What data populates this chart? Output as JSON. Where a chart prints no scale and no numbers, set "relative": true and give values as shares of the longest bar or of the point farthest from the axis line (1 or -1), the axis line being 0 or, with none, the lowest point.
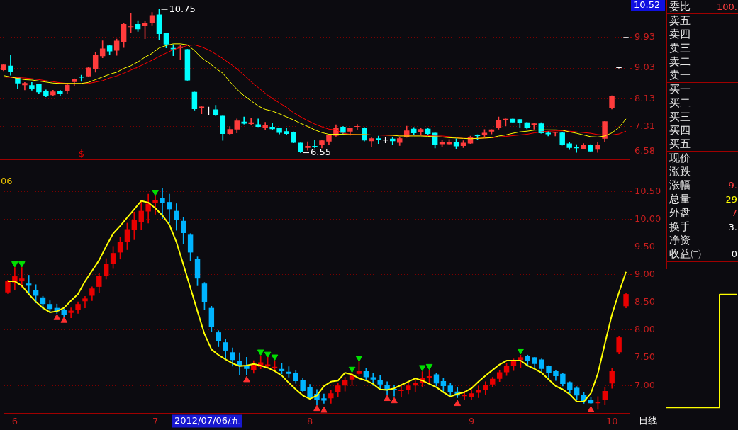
{
  "chart_data": [
    {
      "type": "candlestick",
      "tick_labels": "y",
      "grid": "y",
      "ylim": [
        6.35,
        10.8
      ],
      "yticks": [
        6.58,
        7.31,
        8.13,
        9.03,
        9.93
      ],
      "categories": [
        null,
        null,
        null,
        null,
        null,
        null,
        null,
        null,
        null,
        null,
        null,
        null,
        null,
        null,
        null,
        null,
        null,
        null,
        null,
        null,
        null,
        null,
        null,
        null,
        null,
        null,
        null,
        null,
        null,
        null,
        null,
        null,
        null,
        null,
        null,
        null,
        null,
        null,
        null,
        null,
        null,
        null,
        null,
        null,
        null,
        null,
        null,
        null,
        null,
        null,
        null,
        null,
        null,
        null,
        null,
        null,
        null,
        null,
        null,
        null,
        null,
        null,
        null,
        null,
        null,
        null,
        null,
        null,
        null,
        null,
        null,
        null,
        null,
        null,
        null,
        null,
        null,
        null,
        null,
        null,
        null,
        null,
        null,
        null,
        null,
        null,
        null,
        null,
        null
      ],
      "ohlc": [
        [
          8.97,
          9.15,
          8.95,
          9.13
        ],
        [
          9.1,
          9.4,
          8.82,
          8.91
        ],
        [
          8.77,
          8.77,
          8.43,
          8.58
        ],
        [
          8.53,
          8.61,
          8.39,
          8.59
        ],
        [
          8.53,
          8.61,
          8.38,
          8.43
        ],
        [
          8.56,
          8.56,
          8.28,
          8.32
        ],
        [
          8.35,
          8.39,
          8.19,
          8.21
        ],
        [
          8.24,
          8.38,
          8.22,
          8.34
        ],
        [
          8.35,
          8.38,
          8.22,
          8.27
        ],
        [
          8.36,
          8.58,
          8.27,
          8.54
        ],
        [
          8.62,
          8.72,
          8.51,
          8.71
        ],
        [
          8.77,
          8.82,
          8.64,
          8.75
        ],
        [
          8.79,
          9.06,
          8.77,
          9.04
        ],
        [
          9.0,
          9.49,
          8.91,
          9.41
        ],
        [
          9.38,
          9.83,
          9.33,
          9.6
        ],
        [
          9.69,
          9.69,
          9.42,
          9.52
        ],
        [
          9.54,
          9.88,
          9.4,
          9.83
        ],
        [
          9.8,
          10.35,
          9.63,
          10.32
        ],
        [
          10.23,
          10.63,
          10.07,
          10.25
        ],
        [
          10.32,
          10.42,
          10.1,
          10.17
        ],
        [
          10.27,
          10.41,
          9.89,
          10.35
        ],
        [
          10.35,
          10.66,
          10.29,
          10.58
        ],
        [
          10.6,
          10.75,
          9.86,
          10.03
        ],
        [
          10.06,
          10.06,
          9.62,
          9.72
        ],
        [
          9.62,
          9.72,
          9.39,
          9.58
        ],
        [
          9.62,
          9.69,
          9.29,
          9.66
        ],
        [
          9.58,
          9.58,
          8.67,
          8.67
        ],
        [
          8.33,
          8.33,
          7.8,
          7.83
        ],
        [
          7.87,
          7.9,
          7.69,
          7.9
        ],
        [
          7.85,
          7.89,
          7.67,
          7.85
        ],
        [
          7.82,
          7.94,
          7.63,
          7.64
        ],
        [
          7.63,
          7.63,
          6.91,
          7.1
        ],
        [
          7.1,
          7.32,
          7.08,
          7.24
        ],
        [
          7.23,
          7.54,
          7.13,
          7.49
        ],
        [
          7.46,
          7.6,
          7.39,
          7.4
        ],
        [
          7.39,
          7.57,
          7.36,
          7.44
        ],
        [
          7.38,
          7.54,
          7.31,
          7.31
        ],
        [
          7.29,
          7.44,
          7.21,
          7.35
        ],
        [
          7.31,
          7.41,
          7.22,
          7.24
        ],
        [
          7.27,
          7.27,
          7.1,
          7.13
        ],
        [
          7.18,
          7.27,
          7.08,
          7.1
        ],
        [
          7.16,
          7.16,
          6.84,
          6.84
        ],
        [
          6.84,
          6.84,
          6.55,
          6.57
        ],
        [
          6.69,
          6.87,
          6.62,
          6.75
        ],
        [
          6.75,
          6.91,
          6.69,
          6.71
        ],
        [
          6.79,
          6.91,
          6.69,
          6.91
        ],
        [
          6.88,
          7.08,
          6.79,
          7.08
        ],
        [
          7.05,
          7.37,
          7.03,
          7.29
        ],
        [
          7.31,
          7.32,
          7.1,
          7.13
        ],
        [
          7.17,
          7.27,
          7.06,
          7.27
        ],
        [
          7.31,
          7.38,
          7.22,
          7.32
        ],
        [
          7.29,
          7.29,
          6.89,
          6.91
        ],
        [
          6.89,
          7.0,
          6.72,
          6.97
        ],
        [
          6.97,
          7.04,
          6.82,
          6.92
        ],
        [
          6.91,
          7.0,
          6.84,
          6.91
        ],
        [
          6.96,
          7.0,
          6.79,
          6.89
        ],
        [
          6.84,
          7.0,
          6.76,
          6.97
        ],
        [
          7.0,
          7.33,
          7.0,
          7.2
        ],
        [
          7.25,
          7.29,
          7.08,
          7.12
        ],
        [
          7.16,
          7.27,
          7.08,
          7.24
        ],
        [
          7.25,
          7.27,
          7.08,
          7.1
        ],
        [
          7.13,
          7.13,
          6.69,
          6.77
        ],
        [
          6.8,
          6.93,
          6.73,
          6.85
        ],
        [
          6.8,
          6.94,
          6.79,
          6.85
        ],
        [
          6.87,
          6.96,
          6.66,
          6.74
        ],
        [
          6.75,
          6.9,
          6.7,
          6.84
        ],
        [
          6.82,
          7.04,
          6.82,
          7.0
        ],
        [
          7.08,
          7.08,
          6.94,
          7.04
        ],
        [
          7.08,
          7.23,
          7.01,
          7.13
        ],
        [
          7.17,
          7.23,
          7.1,
          7.23
        ],
        [
          7.27,
          7.6,
          7.24,
          7.5
        ],
        [
          7.5,
          7.54,
          7.33,
          7.54
        ],
        [
          7.54,
          7.54,
          7.43,
          7.44
        ],
        [
          7.53,
          7.53,
          7.29,
          7.43
        ],
        [
          7.44,
          7.44,
          7.25,
          7.27
        ],
        [
          7.37,
          7.41,
          7.24,
          7.41
        ],
        [
          7.41,
          7.43,
          7.12,
          7.12
        ],
        [
          7.13,
          7.18,
          7.04,
          7.09
        ],
        [
          7.13,
          7.15,
          7.04,
          7.14
        ],
        [
          7.14,
          7.14,
          6.77,
          6.77
        ],
        [
          6.82,
          6.85,
          6.64,
          6.69
        ],
        [
          6.71,
          6.79,
          6.56,
          6.68
        ],
        [
          6.66,
          6.82,
          6.66,
          6.77
        ],
        [
          6.79,
          6.79,
          6.59,
          6.59
        ],
        [
          6.64,
          6.85,
          6.56,
          6.79
        ],
        [
          6.96,
          7.47,
          6.87,
          7.47
        ],
        [
          7.85,
          8.22,
          7.83,
          8.22
        ],
        [
          9.03,
          9.03,
          9.03,
          9.03
        ],
        [
          9.92,
          9.92,
          9.92,
          9.92
        ]
      ],
      "colors": [
        "#ff3c3c",
        "#00ffff",
        "#00ffff",
        "#ff3c3c",
        "#00ffff",
        "#00ffff",
        "#00ffff",
        "#ff3c3c",
        "#00ffff",
        "#ff3c3c",
        "#ff3c3c",
        "#00ffff",
        "#ff3c3c",
        "#ff3c3c",
        "#ff3c3c",
        "#00ffff",
        "#ff3c3c",
        "#ff3c3c",
        "#ff3c3c",
        "#00ffff",
        "#ff3c3c",
        "#ff3c3c",
        "#00ffff",
        "#00ffff",
        "#00ffff",
        "#ff3c3c",
        "#00ffff",
        "#00ffff",
        "#ff3c3c",
        "#ffffff",
        "#00ffff",
        "#00ffff",
        "#ff3c3c",
        "#ff3c3c",
        "#00ffff",
        "#ff3c3c",
        "#00ffff",
        "#ff3c3c",
        "#00ffff",
        "#00ffff",
        "#00ffff",
        "#00ffff",
        "#00ffff",
        "#ff3c3c",
        "#00ffff",
        "#ff3c3c",
        "#ff3c3c",
        "#ff3c3c",
        "#00ffff",
        "#ff3c3c",
        "#ff3c3c",
        "#00ffff",
        "#ff3c3c",
        "#00ffff",
        "#ffffff",
        "#00ffff",
        "#ff3c3c",
        "#ff3c3c",
        "#00ffff",
        "#ff3c3c",
        "#00ffff",
        "#00ffff",
        "#ff3c3c",
        "#ff3c3c",
        "#00ffff",
        "#ff3c3c",
        "#ff3c3c",
        "#00ffff",
        "#ff3c3c",
        "#ff3c3c",
        "#ff3c3c",
        "#ff3c3c",
        "#00ffff",
        "#00ffff",
        "#00ffff",
        "#ff3c3c",
        "#00ffff",
        "#00ffff",
        "#ff3c3c",
        "#00ffff",
        "#00ffff",
        "#00ffff",
        "#ff3c3c",
        "#00ffff",
        "#ff3c3c",
        "#ff3c3c",
        "#ff3c3c",
        "#ffffff",
        "#ffffff"
      ],
      "series": [
        {
          "type": "line",
          "color": "#ffff00",
          "values": [
            8.81,
            8.77,
            8.73,
            8.69,
            8.68,
            8.65,
            8.62,
            8.59,
            8.58,
            8.58,
            8.58,
            8.58,
            8.61,
            8.69,
            8.77,
            8.85,
            8.91,
            9.02,
            9.1,
            9.21,
            9.35,
            9.46,
            9.62,
            9.69,
            9.74,
            9.74,
            9.71,
            9.54,
            9.33,
            9.19,
            9.02,
            8.88,
            8.63,
            8.41,
            8.22,
            8.07,
            7.92,
            7.82,
            7.77,
            7.69,
            7.6,
            7.51,
            7.41,
            7.32,
            7.22,
            7.14,
            7.09,
            7.09,
            7.09,
            7.08,
            7.08,
            7.08,
            7.07,
            7.07,
            7.07,
            7.06,
            7.04,
            7.04,
            7.04,
            7.04,
            7.03,
            7.02,
            7.01,
            6.99,
            6.98,
            6.97,
            6.96,
            6.97,
            6.98,
            6.99,
            7.04,
            7.07,
            7.12,
            7.16,
            7.18,
            7.21,
            7.22,
            7.22,
            7.22,
            7.21,
            7.16,
            7.12,
            7.07,
            7.02,
            7.01,
            7.04,
            7.13,
            7.29,
            7.54
          ]
        },
        {
          "type": "line",
          "color": "#ff0000",
          "values": [
            8.77,
            8.76,
            8.75,
            8.74,
            8.72,
            8.69,
            8.66,
            8.63,
            8.6,
            8.58,
            8.57,
            8.57,
            8.58,
            8.62,
            8.66,
            8.74,
            8.8,
            8.88,
            8.97,
            9.06,
            9.16,
            9.26,
            9.37,
            9.47,
            9.57,
            9.63,
            9.69,
            9.71,
            9.65,
            9.56,
            9.44,
            9.31,
            9.16,
            9.01,
            8.82,
            8.63,
            8.46,
            8.29,
            8.14,
            8.01,
            7.88,
            7.72,
            7.6,
            7.49,
            7.39,
            7.31,
            7.24,
            7.22,
            7.12,
            7.09,
            7.08,
            7.08,
            7.07,
            7.07,
            7.06,
            7.06,
            7.06,
            7.06,
            7.06,
            7.06,
            7.05,
            7.04,
            7.04,
            7.02,
            6.99,
            6.97,
            6.97,
            6.97,
            6.98,
            6.99,
            7.01,
            7.03,
            7.05,
            7.07,
            7.09,
            7.13,
            7.16,
            7.18,
            7.19,
            7.19,
            7.18,
            7.16,
            7.14,
            7.12,
            7.08,
            7.07,
            7.07,
            7.1,
            7.18
          ]
        }
      ],
      "annotations": [
        "10.75",
        "6.55",
        "10.52",
        "$"
      ]
    },
    {
      "type": "candlestick",
      "grid": "y",
      "ylim": [
        6.5,
        10.8
      ],
      "yticks": [
        {
          "value": 7,
          "label": "7.00"
        },
        {
          "value": 7.5,
          "label": "7.50"
        },
        {
          "value": 8,
          "label": "8.00"
        },
        {
          "value": 8.5,
          "label": "8.50"
        },
        {
          "value": 9,
          "label": "9.00"
        },
        {
          "value": 9.5,
          "label": "9.50"
        },
        {
          "value": 10,
          "label": "10.00"
        },
        {
          "value": 10.5,
          "label": "10.50"
        }
      ],
      "categories": [
        null,
        "6",
        null,
        null,
        null,
        null,
        null,
        null,
        null,
        null,
        null,
        null,
        null,
        null,
        null,
        null,
        null,
        null,
        null,
        null,
        null,
        "7",
        null,
        null,
        null,
        null,
        null,
        null,
        null,
        null,
        null,
        null,
        null,
        null,
        null,
        null,
        null,
        null,
        null,
        null,
        null,
        null,
        null,
        "8",
        null,
        null,
        null,
        null,
        null,
        null,
        null,
        null,
        null,
        null,
        null,
        null,
        null,
        null,
        null,
        null,
        null,
        null,
        null,
        null,
        null,
        null,
        "9",
        null,
        null,
        null,
        null,
        null,
        null,
        null,
        null,
        null,
        null,
        null,
        null,
        null,
        null,
        null,
        null,
        null,
        null,
        null,
        "10",
        null,
        null
      ],
      "ohlc": [
        [
          8.68,
          8.9,
          8.66,
          8.88
        ],
        [
          8.86,
          9.13,
          8.72,
          8.97
        ],
        [
          8.88,
          9.13,
          8.76,
          8.93
        ],
        [
          8.84,
          8.99,
          8.63,
          8.8
        ],
        [
          8.72,
          8.82,
          8.49,
          8.62
        ],
        [
          8.59,
          8.61,
          8.38,
          8.47
        ],
        [
          8.47,
          8.53,
          8.32,
          8.38
        ],
        [
          8.4,
          8.47,
          8.3,
          8.34
        ],
        [
          8.36,
          8.38,
          8.24,
          8.28
        ],
        [
          8.31,
          8.4,
          8.22,
          8.35
        ],
        [
          8.37,
          8.51,
          8.3,
          8.47
        ],
        [
          8.52,
          8.61,
          8.4,
          8.57
        ],
        [
          8.62,
          8.78,
          8.53,
          8.75
        ],
        [
          8.78,
          9.02,
          8.68,
          8.98
        ],
        [
          8.97,
          9.29,
          8.92,
          9.2
        ],
        [
          9.2,
          9.51,
          9.11,
          9.39
        ],
        [
          9.4,
          9.68,
          9.28,
          9.59
        ],
        [
          9.59,
          9.93,
          9.45,
          9.82
        ],
        [
          9.81,
          10.13,
          9.63,
          9.98
        ],
        [
          9.95,
          10.34,
          9.81,
          10.15
        ],
        [
          10.14,
          10.45,
          9.93,
          10.28
        ],
        [
          10.29,
          10.43,
          10.09,
          10.35
        ],
        [
          10.38,
          10.56,
          10.01,
          10.29
        ],
        [
          10.31,
          10.45,
          9.93,
          10.18
        ],
        [
          10.15,
          10.28,
          9.8,
          9.98
        ],
        [
          9.97,
          10.03,
          9.55,
          9.75
        ],
        [
          9.72,
          9.74,
          9.25,
          9.4
        ],
        [
          9.29,
          9.32,
          8.8,
          8.93
        ],
        [
          8.84,
          8.86,
          8.37,
          8.51
        ],
        [
          8.4,
          8.43,
          7.97,
          8.06
        ],
        [
          7.96,
          7.99,
          7.7,
          7.8
        ],
        [
          7.78,
          7.83,
          7.47,
          7.63
        ],
        [
          7.6,
          7.68,
          7.35,
          7.46
        ],
        [
          7.44,
          7.59,
          7.2,
          7.35
        ],
        [
          7.35,
          7.51,
          7.2,
          7.3
        ],
        [
          7.28,
          7.45,
          7.22,
          7.38
        ],
        [
          7.34,
          7.53,
          7.3,
          7.42
        ],
        [
          7.35,
          7.51,
          7.32,
          7.38
        ],
        [
          7.31,
          7.45,
          7.26,
          7.34
        ],
        [
          7.3,
          7.4,
          7.21,
          7.26
        ],
        [
          7.25,
          7.34,
          7.15,
          7.21
        ],
        [
          7.23,
          7.27,
          7.04,
          7.08
        ],
        [
          7.1,
          7.13,
          6.89,
          6.9
        ],
        [
          6.97,
          7.02,
          6.76,
          6.78
        ],
        [
          6.85,
          6.93,
          6.65,
          6.74
        ],
        [
          6.77,
          6.85,
          6.68,
          6.73
        ],
        [
          6.77,
          6.92,
          6.68,
          6.86
        ],
        [
          6.88,
          7.05,
          6.79,
          7.0
        ],
        [
          7.0,
          7.15,
          6.9,
          7.1
        ],
        [
          7.11,
          7.22,
          7.0,
          7.18
        ],
        [
          7.21,
          7.43,
          7.18,
          7.26
        ],
        [
          7.26,
          7.31,
          7.09,
          7.15
        ],
        [
          7.15,
          7.22,
          7.0,
          7.11
        ],
        [
          7.1,
          7.18,
          6.93,
          7.02
        ],
        [
          7.01,
          7.07,
          6.84,
          6.92
        ],
        [
          6.94,
          7.01,
          6.81,
          6.92
        ],
        [
          6.9,
          6.99,
          6.8,
          6.92
        ],
        [
          6.92,
          7.06,
          6.85,
          7.0
        ],
        [
          7.0,
          7.11,
          6.89,
          7.05
        ],
        [
          7.05,
          7.25,
          6.97,
          7.13
        ],
        [
          7.14,
          7.27,
          7.05,
          7.17
        ],
        [
          7.2,
          7.22,
          6.99,
          7.04
        ],
        [
          7.08,
          7.13,
          6.89,
          6.99
        ],
        [
          7.0,
          7.04,
          6.81,
          6.88
        ],
        [
          6.89,
          6.97,
          6.78,
          6.82
        ],
        [
          6.81,
          6.9,
          6.74,
          6.83
        ],
        [
          6.8,
          6.93,
          6.74,
          6.86
        ],
        [
          6.87,
          6.99,
          6.78,
          6.92
        ],
        [
          6.92,
          7.07,
          6.84,
          7.01
        ],
        [
          7.02,
          7.15,
          6.97,
          7.12
        ],
        [
          7.12,
          7.27,
          7.07,
          7.24
        ],
        [
          7.24,
          7.4,
          7.18,
          7.36
        ],
        [
          7.36,
          7.48,
          7.27,
          7.45
        ],
        [
          7.46,
          7.55,
          7.32,
          7.51
        ],
        [
          7.53,
          7.55,
          7.35,
          7.45
        ],
        [
          7.51,
          7.51,
          7.3,
          7.39
        ],
        [
          7.47,
          7.48,
          7.24,
          7.3
        ],
        [
          7.35,
          7.36,
          7.15,
          7.23
        ],
        [
          7.26,
          7.28,
          7.09,
          7.17
        ],
        [
          7.21,
          7.23,
          6.99,
          7.03
        ],
        [
          7.06,
          7.07,
          6.86,
          6.92
        ],
        [
          6.96,
          6.98,
          6.74,
          6.82
        ],
        [
          6.83,
          6.88,
          6.68,
          6.72
        ],
        [
          6.74,
          6.79,
          6.67,
          6.68
        ],
        [
          6.68,
          6.8,
          6.57,
          6.7
        ],
        [
          6.74,
          6.97,
          6.65,
          6.9
        ],
        [
          7.04,
          7.32,
          6.95,
          7.26
        ],
        [
          7.6,
          7.88,
          7.57,
          7.87
        ],
        [
          8.43,
          8.67,
          8.4,
          8.65
        ]
      ],
      "colors": [
        "#e80000",
        "#e80000",
        "#e80000",
        "#00b4ff",
        "#00b4ff",
        "#00b4ff",
        "#00b4ff",
        "#00b4ff",
        "#00b4ff",
        "#e80000",
        "#e80000",
        "#e80000",
        "#e80000",
        "#e80000",
        "#e80000",
        "#e80000",
        "#e80000",
        "#e80000",
        "#e80000",
        "#e80000",
        "#e80000",
        "#e80000",
        "#00b4ff",
        "#00b4ff",
        "#00b4ff",
        "#00b4ff",
        "#00b4ff",
        "#00b4ff",
        "#00b4ff",
        "#00b4ff",
        "#00b4ff",
        "#00b4ff",
        "#00b4ff",
        "#00b4ff",
        "#00b4ff",
        "#e80000",
        "#e80000",
        "#e80000",
        "#e80000",
        "#00b4ff",
        "#00b4ff",
        "#00b4ff",
        "#00b4ff",
        "#00b4ff",
        "#00b4ff",
        "#00b4ff",
        "#e80000",
        "#e80000",
        "#e80000",
        "#e80000",
        "#e80000",
        "#00b4ff",
        "#00b4ff",
        "#00b4ff",
        "#00b4ff",
        "#00b4ff",
        "#e80000",
        "#e80000",
        "#e80000",
        "#e80000",
        "#e80000",
        "#00b4ff",
        "#00b4ff",
        "#00b4ff",
        "#00b4ff",
        "#e80000",
        "#e80000",
        "#e80000",
        "#e80000",
        "#e80000",
        "#e80000",
        "#e80000",
        "#e80000",
        "#e80000",
        "#00b4ff",
        "#00b4ff",
        "#00b4ff",
        "#00b4ff",
        "#00b4ff",
        "#00b4ff",
        "#00b4ff",
        "#00b4ff",
        "#00b4ff",
        "#00b4ff",
        "#e80000",
        "#e80000",
        "#e80000",
        "#e80000",
        "#e80000"
      ],
      "series": [
        {
          "type": "line",
          "color": "#ffff00",
          "values": [
            8.88,
            8.88,
            8.8,
            8.65,
            8.51,
            8.4,
            8.32,
            8.34,
            8.4,
            8.53,
            8.65,
            8.88,
            9.07,
            9.26,
            9.51,
            9.74,
            9.88,
            10.03,
            10.18,
            10.33,
            10.3,
            10.2,
            10.07,
            9.9,
            9.59,
            9.18,
            8.76,
            8.34,
            7.93,
            7.65,
            7.55,
            7.47,
            7.4,
            7.35,
            7.36,
            7.39,
            7.36,
            7.32,
            7.26,
            7.18,
            7.05,
            6.93,
            6.82,
            6.76,
            6.82,
            6.99,
            7.07,
            7.09,
            7.23,
            7.2,
            7.13,
            7.09,
            7.03,
            6.93,
            6.92,
            6.95,
            7.01,
            7.07,
            7.13,
            7.09,
            7.03,
            6.97,
            6.88,
            6.8,
            6.85,
            6.88,
            6.95,
            7.07,
            7.18,
            7.28,
            7.38,
            7.45,
            7.45,
            7.45,
            7.36,
            7.3,
            7.23,
            7.11,
            6.99,
            6.93,
            6.84,
            6.71,
            6.71,
            6.86,
            7.22,
            7.76,
            8.28,
            8.68,
            9.05
          ]
        },
        {
          "type": "scatter",
          "color": "#00e000",
          "marker": "triangle",
          "values": [
            null,
            9.2,
            9.2,
            null,
            null,
            null,
            null,
            null,
            null,
            null,
            null,
            null,
            null,
            null,
            null,
            null,
            null,
            null,
            null,
            null,
            null,
            10.49,
            null,
            null,
            null,
            null,
            null,
            null,
            null,
            null,
            null,
            null,
            null,
            null,
            null,
            null,
            7.61,
            7.57,
            7.52,
            null,
            null,
            null,
            null,
            null,
            null,
            null,
            null,
            null,
            null,
            7.3,
            7.5,
            null,
            null,
            null,
            null,
            null,
            null,
            null,
            null,
            7.33,
            7.35,
            null,
            null,
            null,
            null,
            null,
            null,
            null,
            null,
            null,
            null,
            null,
            null,
            7.63,
            null,
            null,
            null,
            null,
            null,
            null,
            null,
            null,
            null,
            null,
            null,
            null,
            null,
            null,
            null
          ]
        },
        {
          "type": "scatter",
          "color": "#ff3030",
          "marker": "triangle",
          "values": [
            null,
            null,
            null,
            null,
            null,
            null,
            null,
            8.22,
            8.17,
            null,
            null,
            null,
            null,
            null,
            null,
            null,
            null,
            null,
            null,
            null,
            null,
            null,
            null,
            null,
            null,
            null,
            null,
            null,
            null,
            null,
            null,
            null,
            null,
            null,
            7.1,
            null,
            null,
            null,
            null,
            null,
            null,
            null,
            null,
            null,
            6.58,
            6.55,
            null,
            null,
            null,
            null,
            null,
            null,
            null,
            null,
            6.76,
            6.72,
            null,
            null,
            null,
            null,
            null,
            null,
            null,
            null,
            6.67,
            null,
            null,
            null,
            null,
            null,
            null,
            null,
            null,
            null,
            null,
            null,
            null,
            null,
            null,
            null,
            null,
            null,
            null,
            6.56,
            null,
            null,
            null,
            null,
            null
          ]
        }
      ],
      "annotations": [
        "06",
        "2012/07/06/五",
        "日线"
      ]
    },
    {
      "type": "other",
      "categories": [
        "委比",
        "卖五",
        "卖四",
        "卖三",
        "卖二",
        "卖一",
        "买一",
        "买二",
        "买三",
        "买四",
        "买五",
        "现价",
        "涨跌",
        "涨幅",
        "总量",
        "外盘",
        "换手",
        "净资",
        "收益㈡"
      ],
      "value_labels": [
        "100.",
        null,
        null,
        null,
        null,
        null,
        null,
        null,
        null,
        null,
        null,
        null,
        null,
        "9.",
        "29",
        "7",
        "3.",
        null,
        "0"
      ],
      "colors": [
        "#ff4040",
        null,
        null,
        null,
        null,
        null,
        null,
        null,
        null,
        null,
        null,
        null,
        null,
        "#ff4040",
        "#ffff00",
        "#ff4040",
        "#ffffff",
        null,
        "#ffffff"
      ]
    },
    {
      "type": "step",
      "relative": true,
      "categories": [
        null,
        null,
        null,
        null,
        null
      ],
      "values": [
        0,
        0,
        0,
        1,
        1
      ],
      "color": "#ffff00"
    }
  ]
}
